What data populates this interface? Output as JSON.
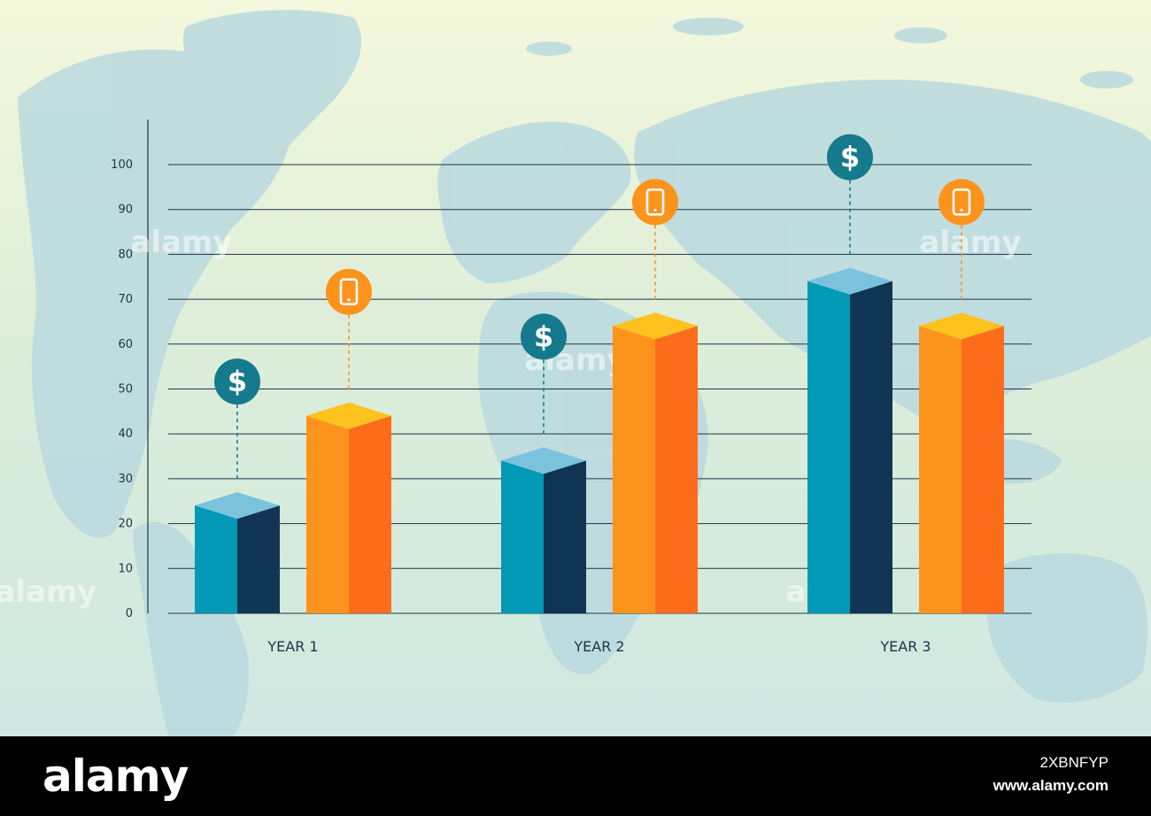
{
  "chart_data": {
    "type": "bar",
    "categories": [
      "YEAR 1",
      "YEAR 2",
      "YEAR 3"
    ],
    "series": [
      {
        "icon": "dollar-icon",
        "values": [
          27,
          37,
          77
        ],
        "colors": {
          "front": "#0199b6",
          "side": "#0f3552",
          "top": "#7bc3dd"
        },
        "marker_color": "#157a8c"
      },
      {
        "icon": "smartphone-icon",
        "values": [
          47,
          67,
          67
        ],
        "colors": {
          "front": "#fc941b",
          "side": "#fd6c1b",
          "top": "#fdc21e"
        },
        "marker_color": "#fc931c"
      }
    ],
    "y_ticks": [
      "0",
      "10",
      "20",
      "30",
      "40",
      "50",
      "60",
      "70",
      "80",
      "90",
      "100"
    ],
    "ylim": [
      0,
      100
    ],
    "grid": true,
    "title": "",
    "xlabel": "",
    "ylabel": ""
  },
  "footer": {
    "brand": "alamy",
    "image_id": "2XBNFYP",
    "url": "www.alamy.com"
  },
  "watermark": {
    "text": "alamy"
  }
}
